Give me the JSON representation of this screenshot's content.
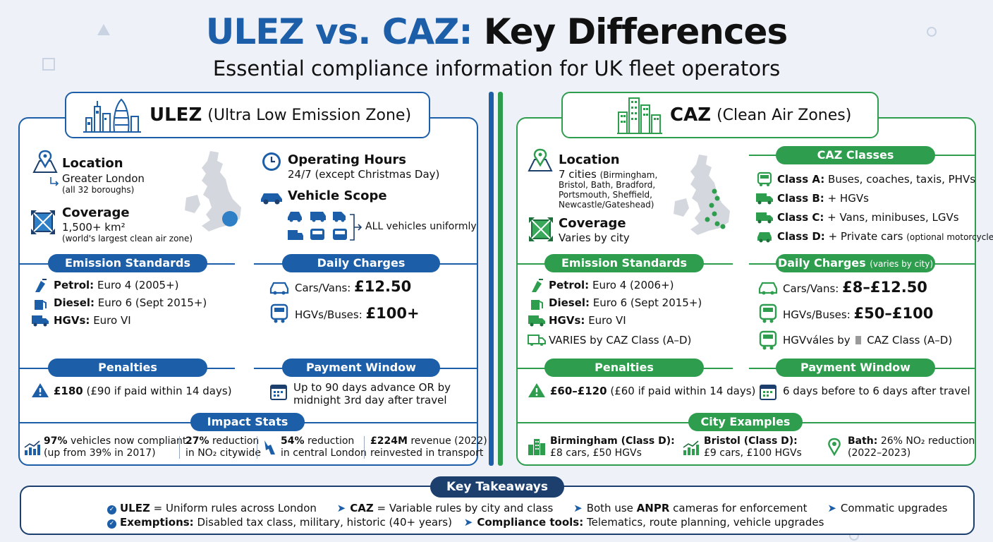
{
  "title_a": "ULEZ vs. CAZ:",
  "title_b": "Key Differences",
  "subtitle": "Essential compliance information for UK fleet operators",
  "ulez": {
    "header_bold": "ULEZ",
    "header_name": "(Ultra Low Emission Zone)",
    "location_label": "Location",
    "location_value": "Greater London",
    "location_note": "(all 32 boroughs)",
    "coverage_label": "Coverage",
    "coverage_value": "1,500+ km²",
    "coverage_note": "(world's largest clean air zone)",
    "hours_label": "Operating Hours",
    "hours_value": "24/7 (except Christmas Day)",
    "scope_label": "Vehicle Scope",
    "scope_value": "ALL vehicles uniformly",
    "emission_title": "Emission Standards",
    "petrol_label": "Petrol:",
    "petrol_value": "Euro 4 (2005+)",
    "diesel_label": "Diesel:",
    "diesel_value": "Euro 6 (Sept 2015+)",
    "hgv_label": "HGVs:",
    "hgv_value": "Euro VI",
    "charges_title": "Daily Charges",
    "cars_label": "Cars/Vans:",
    "cars_value": "£12.50",
    "hgvbus_label": "HGVs/Buses:",
    "hgvbus_value": "£100+",
    "penalties_title": "Penalties",
    "penalty_value": "£180",
    "penalty_note": "(£90 if paid within 14 days)",
    "payment_title": "Payment Window",
    "payment_line1": "Up to 90 days advance OR by",
    "payment_line2": "midnight 3rd day after travel",
    "impact_title": "Impact Stats",
    "stat1_bold": "97%",
    "stat1_rest": "vehicles now compliant",
    "stat1_line2": "(up from 39% in 2017)",
    "stat2_bold": "27%",
    "stat2_rest": "reduction",
    "stat2_line2": "in NO₂ citywide",
    "stat3_bold": "54%",
    "stat3_rest": "reduction",
    "stat3_line2": "in central London",
    "stat4_bold": "£224M",
    "stat4_rest": "revenue (2022)",
    "stat4_line2": "reinvested in transport"
  },
  "caz": {
    "header_bold": "CAZ",
    "header_name": "(Clean Air Zones)",
    "location_label": "Location",
    "location_value": "7 cities",
    "location_note1": "(Birmingham,",
    "location_note2": "Bristol, Bath, Bradford,",
    "location_note3": "Portsmouth, Sheffield,",
    "location_note4": "Newcastle/Gateshead)",
    "coverage_label": "Coverage",
    "coverage_value": "Varies by city",
    "classes_title": "CAZ Classes",
    "classA_label": "Class A:",
    "classA_value": "Buses, coaches, taxis, PHVs",
    "classB_label": "Class B:",
    "classB_value": "+ HGVs",
    "classC_label": "Class C:",
    "classC_value": "+ Vans, minibuses, LGVs",
    "classD_label": "Class D:",
    "classD_value": "+ Private cars",
    "classD_note": "(optional motorcycles)",
    "emission_title": "Emission Standards",
    "petrol_label": "Petrol:",
    "petrol_value": "Euro 4 (2006+)",
    "diesel_label": "Diesel:",
    "diesel_value": "Euro 6 (Sept 2015+)",
    "hgv_label": "HGVs:",
    "hgv_value": "Euro VI",
    "varies_value": "VARIES by CAZ Class (A–D)",
    "charges_title": "Daily Charges",
    "charges_note": "(varies by city)",
    "cars_label": "Cars/Vans:",
    "cars_value": "£8–£12.50",
    "hgvbus_label": "HGVs/Buses:",
    "hgvbus_value": "£50–£100",
    "hgvvaries_label": "HGVváles by",
    "hgvvaries_value": "CAZ Class (A–D)",
    "penalties_title": "Penalties",
    "penalty_value": "£60–£120",
    "penalty_note": "(£60 if paid within 14 days)",
    "payment_title": "Payment Window",
    "payment_value": "6 days before to 6 days after travel",
    "city_title": "City Examples",
    "city1_label": "Birmingham (Class D):",
    "city1_value": "£8 cars, £50 HGVs",
    "city2_label": "Bristol (Class D):",
    "city2_value": "£9 cars, £100 HGVs",
    "city3_label": "Bath:",
    "city3_rest": "26% NO₂ reduction",
    "city3_line2": "(2022–2023)"
  },
  "takeaways": {
    "title": "Key Takeaways",
    "r1a_bold": "ULEZ",
    "r1a_rest": "= Uniform rules across London",
    "r1b_bold": "CAZ",
    "r1b_rest": "= Variable rules by city and class",
    "r1c_pre": "Both use",
    "r1c_bold": "ANPR",
    "r1c_rest": "cameras for enforcement",
    "r1d": "Commatic upgrades",
    "r2a_bold": "Exemptions:",
    "r2a_rest": "Disabled tax class, military, historic (40+ years)",
    "r2b_bold": "Compliance tools:",
    "r2b_rest": "Telematics, route planning, vehicle upgrades"
  },
  "colors": {
    "ulez": "#1c5ea8",
    "caz": "#2e9e4e",
    "navy": "#1c3f6e"
  }
}
